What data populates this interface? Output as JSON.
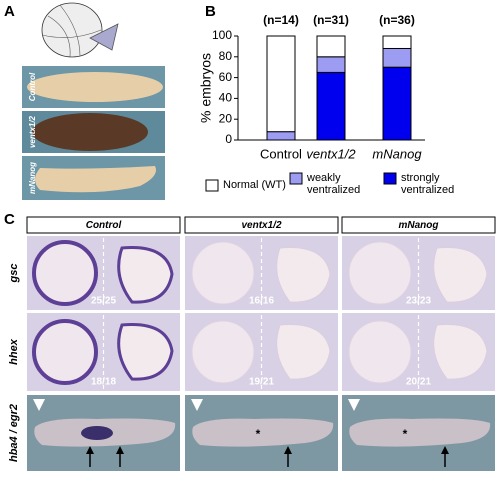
{
  "panel_letters": [
    "A",
    "B",
    "C"
  ],
  "panel_a": {
    "row_labels": [
      "Control",
      "ventx1/2",
      "mNanog"
    ]
  },
  "chart_data": {
    "type": "bar",
    "stacked": true,
    "ylabel": "% embryos",
    "categories": [
      "Control",
      "ventx1/2",
      "mNanog"
    ],
    "category_italic": [
      false,
      true,
      true
    ],
    "n_labels": [
      "(n=14)",
      "(n=31)",
      "(n=36)"
    ],
    "series": [
      {
        "name": "strongly ventralized",
        "color": "#0000ee",
        "values": [
          0,
          65,
          70
        ]
      },
      {
        "name": "weakly ventralized",
        "color": "#9c9cf2",
        "values": [
          8,
          15,
          18
        ]
      },
      {
        "name": "Normal (WT)",
        "color": "#ffffff",
        "values": [
          92,
          20,
          12
        ]
      }
    ],
    "legend_order": [
      2,
      1,
      0
    ],
    "ylim": [
      0,
      100
    ],
    "yticks": [
      0,
      20,
      40,
      60,
      80,
      100
    ]
  },
  "panel_c": {
    "column_headers": [
      "Control",
      "ventx1/2",
      "mNanog"
    ],
    "row_labels": [
      "gsc",
      "hhex",
      "hba4 / egr2"
    ],
    "counts": [
      [
        "25/25",
        "16/16",
        "23/23"
      ],
      [
        "18/18",
        "19/21",
        "20/21"
      ]
    ],
    "asterisk": "*"
  }
}
